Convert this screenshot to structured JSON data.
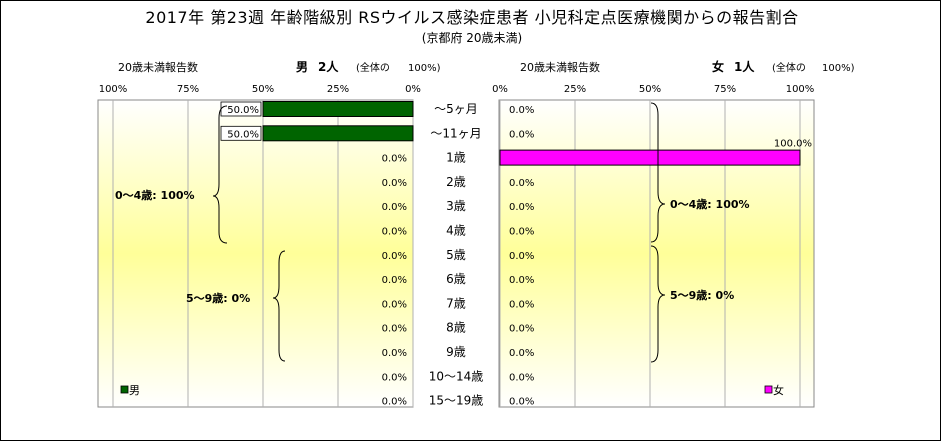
{
  "title": "2017年 第23週 年齢階級別 RSウイルス感染症患者 小児科定点医療機関からの報告割合",
  "subtitle": "(京都府 20歳未満)",
  "chart_data": {
    "type": "bar",
    "orientation": "horizontal-butterfly",
    "categories": [
      "～5ヶ月",
      "～11ヶ月",
      "1歳",
      "2歳",
      "3歳",
      "4歳",
      "5歳",
      "6歳",
      "7歳",
      "8歳",
      "9歳",
      "10～14歳",
      "15～19歳"
    ],
    "xlim": [
      0,
      100
    ],
    "ticks": [
      "100%",
      "75%",
      "50%",
      "25%",
      "0%"
    ],
    "ticks_right": [
      "0%",
      "25%",
      "50%",
      "75%",
      "100%"
    ],
    "grid": true,
    "panels": {
      "male": {
        "header_left": "20歳未満報告数",
        "header_name": "男",
        "header_count": "2人",
        "header_total": "(全体の",
        "header_pct": "100%)",
        "legend": "男",
        "color": "#006400",
        "values": [
          50.0,
          50.0,
          0.0,
          0.0,
          0.0,
          0.0,
          0.0,
          0.0,
          0.0,
          0.0,
          0.0,
          0.0,
          0.0
        ],
        "labels": [
          "50.0%",
          "50.0%",
          "0.0%",
          "0.0%",
          "0.0%",
          "0.0%",
          "0.0%",
          "0.0%",
          "0.0%",
          "0.0%",
          "0.0%",
          "0.0%",
          "0.0%"
        ],
        "group_labels": [
          "0～4歳: 100%",
          "5～9歳: 0%"
        ]
      },
      "female": {
        "header_left": "20歳未満報告数",
        "header_name": "女",
        "header_count": "1人",
        "header_total": "(全体の",
        "header_pct": "100%)",
        "legend": "女",
        "color": "#ff00ff",
        "values": [
          0.0,
          0.0,
          100.0,
          0.0,
          0.0,
          0.0,
          0.0,
          0.0,
          0.0,
          0.0,
          0.0,
          0.0,
          0.0
        ],
        "labels": [
          "0.0%",
          "0.0%",
          "100.0%",
          "0.0%",
          "0.0%",
          "0.0%",
          "0.0%",
          "0.0%",
          "0.0%",
          "0.0%",
          "0.0%",
          "0.0%",
          "0.0%"
        ],
        "group_labels": [
          "0～4歳: 100%",
          "5～9歳: 0%"
        ]
      }
    }
  }
}
